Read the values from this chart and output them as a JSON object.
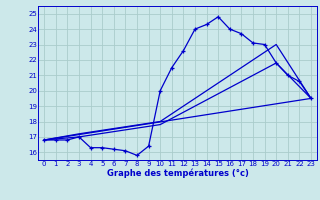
{
  "bg_color": "#cce8ea",
  "grid_color": "#aacccc",
  "line_color": "#0000cc",
  "title": "Graphe des températures (°c)",
  "xlim": [
    -0.5,
    23.5
  ],
  "ylim": [
    15.5,
    25.5
  ],
  "yticks": [
    16,
    17,
    18,
    19,
    20,
    21,
    22,
    23,
    24,
    25
  ],
  "xticks": [
    0,
    1,
    2,
    3,
    4,
    5,
    6,
    7,
    8,
    9,
    10,
    11,
    12,
    13,
    14,
    15,
    16,
    17,
    18,
    19,
    20,
    21,
    22,
    23
  ],
  "series1_x": [
    0,
    1,
    2,
    3,
    4,
    5,
    6,
    7,
    8,
    9,
    10,
    11,
    12,
    13,
    14,
    15,
    16,
    17,
    18,
    19,
    20,
    21,
    22,
    23
  ],
  "series1_y": [
    16.8,
    16.8,
    16.8,
    17.0,
    16.3,
    16.3,
    16.2,
    16.1,
    15.8,
    16.4,
    20.0,
    21.5,
    22.6,
    24.0,
    24.3,
    24.8,
    24.0,
    23.7,
    23.1,
    23.0,
    21.8,
    21.0,
    20.6,
    19.5
  ],
  "series2_x": [
    0,
    3,
    10,
    20,
    23
  ],
  "series2_y": [
    16.8,
    17.2,
    18.0,
    23.0,
    19.5
  ],
  "series3_x": [
    0,
    3,
    10,
    20,
    23
  ],
  "series3_y": [
    16.8,
    17.0,
    17.8,
    21.8,
    19.5
  ],
  "series4_x": [
    0,
    23
  ],
  "series4_y": [
    16.8,
    19.5
  ]
}
